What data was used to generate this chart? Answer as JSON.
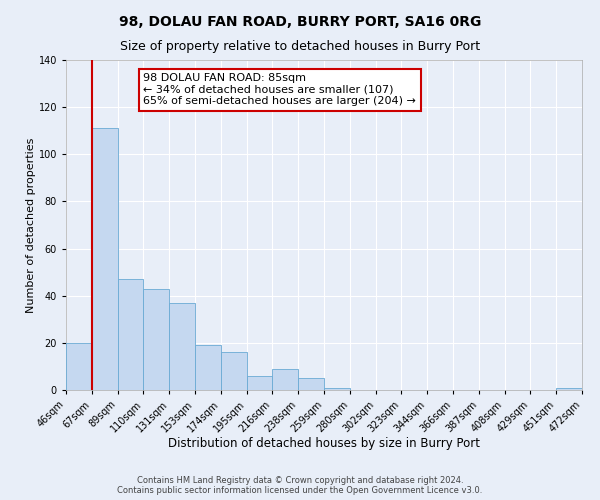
{
  "title": "98, DOLAU FAN ROAD, BURRY PORT, SA16 0RG",
  "subtitle": "Size of property relative to detached houses in Burry Port",
  "xlabel": "Distribution of detached houses by size in Burry Port",
  "ylabel": "Number of detached properties",
  "bar_color": "#c5d8f0",
  "bar_edge_color": "#6aaad4",
  "bar_values": [
    20,
    111,
    47,
    43,
    37,
    19,
    16,
    6,
    9,
    5,
    1,
    0,
    0,
    0,
    0,
    0,
    0,
    0,
    0,
    1
  ],
  "bin_labels": [
    "46sqm",
    "67sqm",
    "89sqm",
    "110sqm",
    "131sqm",
    "153sqm",
    "174sqm",
    "195sqm",
    "216sqm",
    "238sqm",
    "259sqm",
    "280sqm",
    "302sqm",
    "323sqm",
    "344sqm",
    "366sqm",
    "387sqm",
    "408sqm",
    "429sqm",
    "451sqm",
    "472sqm"
  ],
  "ylim": [
    0,
    140
  ],
  "yticks": [
    0,
    20,
    40,
    60,
    80,
    100,
    120,
    140
  ],
  "vline_x": 1.0,
  "vline_color": "#cc0000",
  "annotation_line1": "98 DOLAU FAN ROAD: 85sqm",
  "annotation_line2": "← 34% of detached houses are smaller (107)",
  "annotation_line3": "65% of semi-detached houses are larger (204) →",
  "annotation_box_color": "#ffffff",
  "annotation_box_edge_color": "#cc0000",
  "footer_line1": "Contains HM Land Registry data © Crown copyright and database right 2024.",
  "footer_line2": "Contains public sector information licensed under the Open Government Licence v3.0.",
  "background_color": "#e8eef8",
  "plot_bg_color": "#e8eef8",
  "grid_color": "#ffffff",
  "title_fontsize": 10,
  "subtitle_fontsize": 9,
  "xlabel_fontsize": 8.5,
  "ylabel_fontsize": 8,
  "tick_fontsize": 7,
  "annotation_fontsize": 8,
  "footer_fontsize": 6
}
